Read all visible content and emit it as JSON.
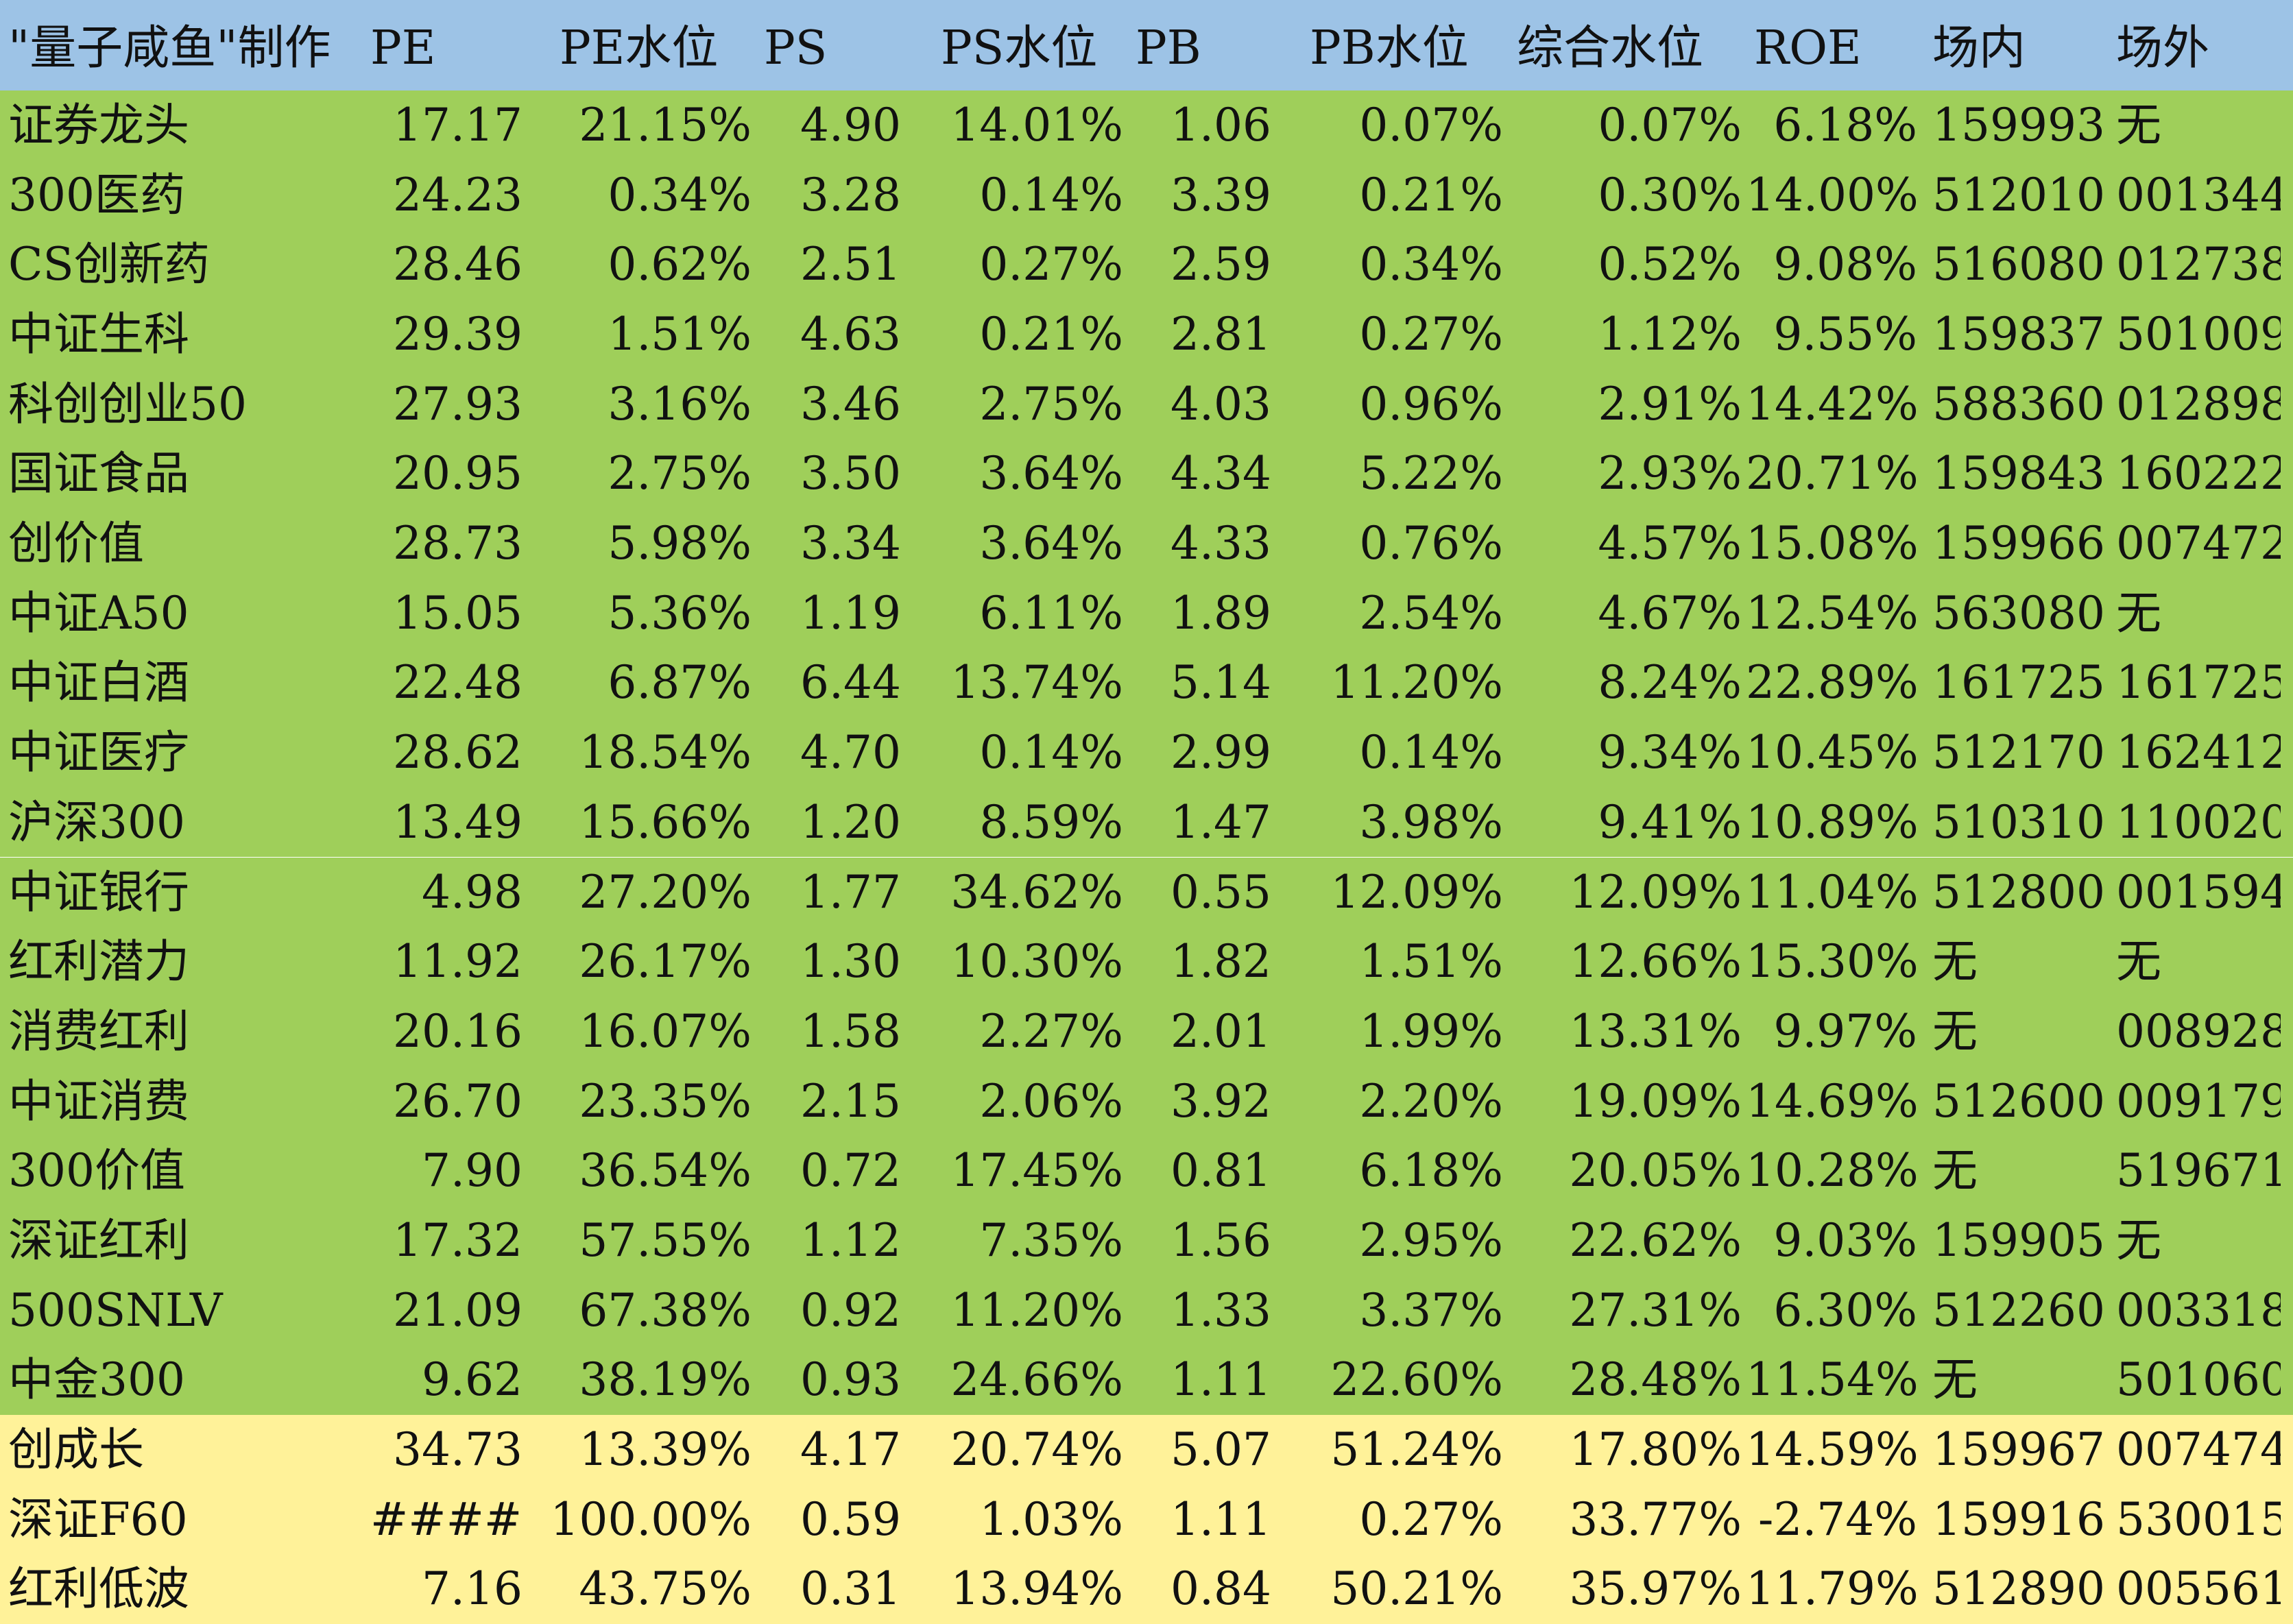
{
  "colors": {
    "header_bg": "#9dc3e6",
    "green_row_bg": "#9fcf5a",
    "yellow_row_bg": "#fff299"
  },
  "header": [
    "\"量子咸鱼\"制作",
    "PE",
    "PE水位",
    "PS",
    "PS水位",
    "PB",
    "PB水位",
    "综合水位",
    "ROE",
    "场内",
    "场外"
  ],
  "groups": [
    {
      "color": "green",
      "rows": [
        [
          "证券龙头",
          "17.17",
          "21.15%",
          "4.90",
          "14.01%",
          "1.06",
          "0.07%",
          "0.07%",
          "6.18%",
          "159993",
          "无"
        ],
        [
          "300医药",
          "24.23",
          "0.34%",
          "3.28",
          "0.14%",
          "3.39",
          "0.21%",
          "0.30%",
          "14.00%",
          "512010",
          "001344"
        ],
        [
          "CS创新药",
          "28.46",
          "0.62%",
          "2.51",
          "0.27%",
          "2.59",
          "0.34%",
          "0.52%",
          "9.08%",
          "516080",
          "012738"
        ],
        [
          "中证生科",
          "29.39",
          "1.51%",
          "4.63",
          "0.21%",
          "2.81",
          "0.27%",
          "1.12%",
          "9.55%",
          "159837",
          "501009"
        ],
        [
          "科创创业50",
          "27.93",
          "3.16%",
          "3.46",
          "2.75%",
          "4.03",
          "0.96%",
          "2.91%",
          "14.42%",
          "588360",
          "012898"
        ],
        [
          "国证食品",
          "20.95",
          "2.75%",
          "3.50",
          "3.64%",
          "4.34",
          "5.22%",
          "2.93%",
          "20.71%",
          "159843",
          "160222"
        ],
        [
          "创价值",
          "28.73",
          "5.98%",
          "3.34",
          "3.64%",
          "4.33",
          "0.76%",
          "4.57%",
          "15.08%",
          "159966",
          "007472"
        ],
        [
          "中证A50",
          "15.05",
          "5.36%",
          "1.19",
          "6.11%",
          "1.89",
          "2.54%",
          "4.67%",
          "12.54%",
          "563080",
          "无"
        ],
        [
          "中证白酒",
          "22.48",
          "6.87%",
          "6.44",
          "13.74%",
          "5.14",
          "11.20%",
          "8.24%",
          "22.89%",
          "161725",
          "161725"
        ],
        [
          "中证医疗",
          "28.62",
          "18.54%",
          "4.70",
          "0.14%",
          "2.99",
          "0.14%",
          "9.34%",
          "10.45%",
          "512170",
          "162412"
        ],
        [
          "沪深300",
          "13.49",
          "15.66%",
          "1.20",
          "8.59%",
          "1.47",
          "3.98%",
          "9.41%",
          "10.89%",
          "510310",
          "110020"
        ],
        [
          "中证银行",
          "4.98",
          "27.20%",
          "1.77",
          "34.62%",
          "0.55",
          "12.09%",
          "12.09%",
          "11.04%",
          "512800",
          "001594"
        ],
        [
          "红利潜力",
          "11.92",
          "26.17%",
          "1.30",
          "10.30%",
          "1.82",
          "1.51%",
          "12.66%",
          "15.30%",
          "无",
          "无"
        ],
        [
          "消费红利",
          "20.16",
          "16.07%",
          "1.58",
          "2.27%",
          "2.01",
          "1.99%",
          "13.31%",
          "9.97%",
          "无",
          "008928"
        ],
        [
          "中证消费",
          "26.70",
          "23.35%",
          "2.15",
          "2.06%",
          "3.92",
          "2.20%",
          "19.09%",
          "14.69%",
          "512600",
          "009179"
        ],
        [
          "300价值",
          "7.90",
          "36.54%",
          "0.72",
          "17.45%",
          "0.81",
          "6.18%",
          "20.05%",
          "10.28%",
          "无",
          "519671"
        ],
        [
          "深证红利",
          "17.32",
          "57.55%",
          "1.12",
          "7.35%",
          "1.56",
          "2.95%",
          "22.62%",
          "9.03%",
          "159905",
          "无"
        ],
        [
          "500SNLV",
          "21.09",
          "67.38%",
          "0.92",
          "11.20%",
          "1.33",
          "3.37%",
          "27.31%",
          "6.30%",
          "512260",
          "003318"
        ],
        [
          "中金300",
          "9.62",
          "38.19%",
          "0.93",
          "24.66%",
          "1.11",
          "22.60%",
          "28.48%",
          "11.54%",
          "无",
          "501060"
        ]
      ]
    },
    {
      "color": "yellow",
      "rows": [
        [
          "创成长",
          "34.73",
          "13.39%",
          "4.17",
          "20.74%",
          "5.07",
          "51.24%",
          "17.80%",
          "14.59%",
          "159967",
          "007474"
        ],
        [
          "深证F60",
          "######",
          "100.00%",
          "0.59",
          "1.03%",
          "1.11",
          "0.27%",
          "33.77%",
          "-2.74%",
          "159916",
          "530015"
        ],
        [
          "红利低波",
          "7.16",
          "43.75%",
          "0.31",
          "13.94%",
          "0.84",
          "50.21%",
          "35.97%",
          "11.79%",
          "512890",
          "005561"
        ]
      ]
    }
  ]
}
